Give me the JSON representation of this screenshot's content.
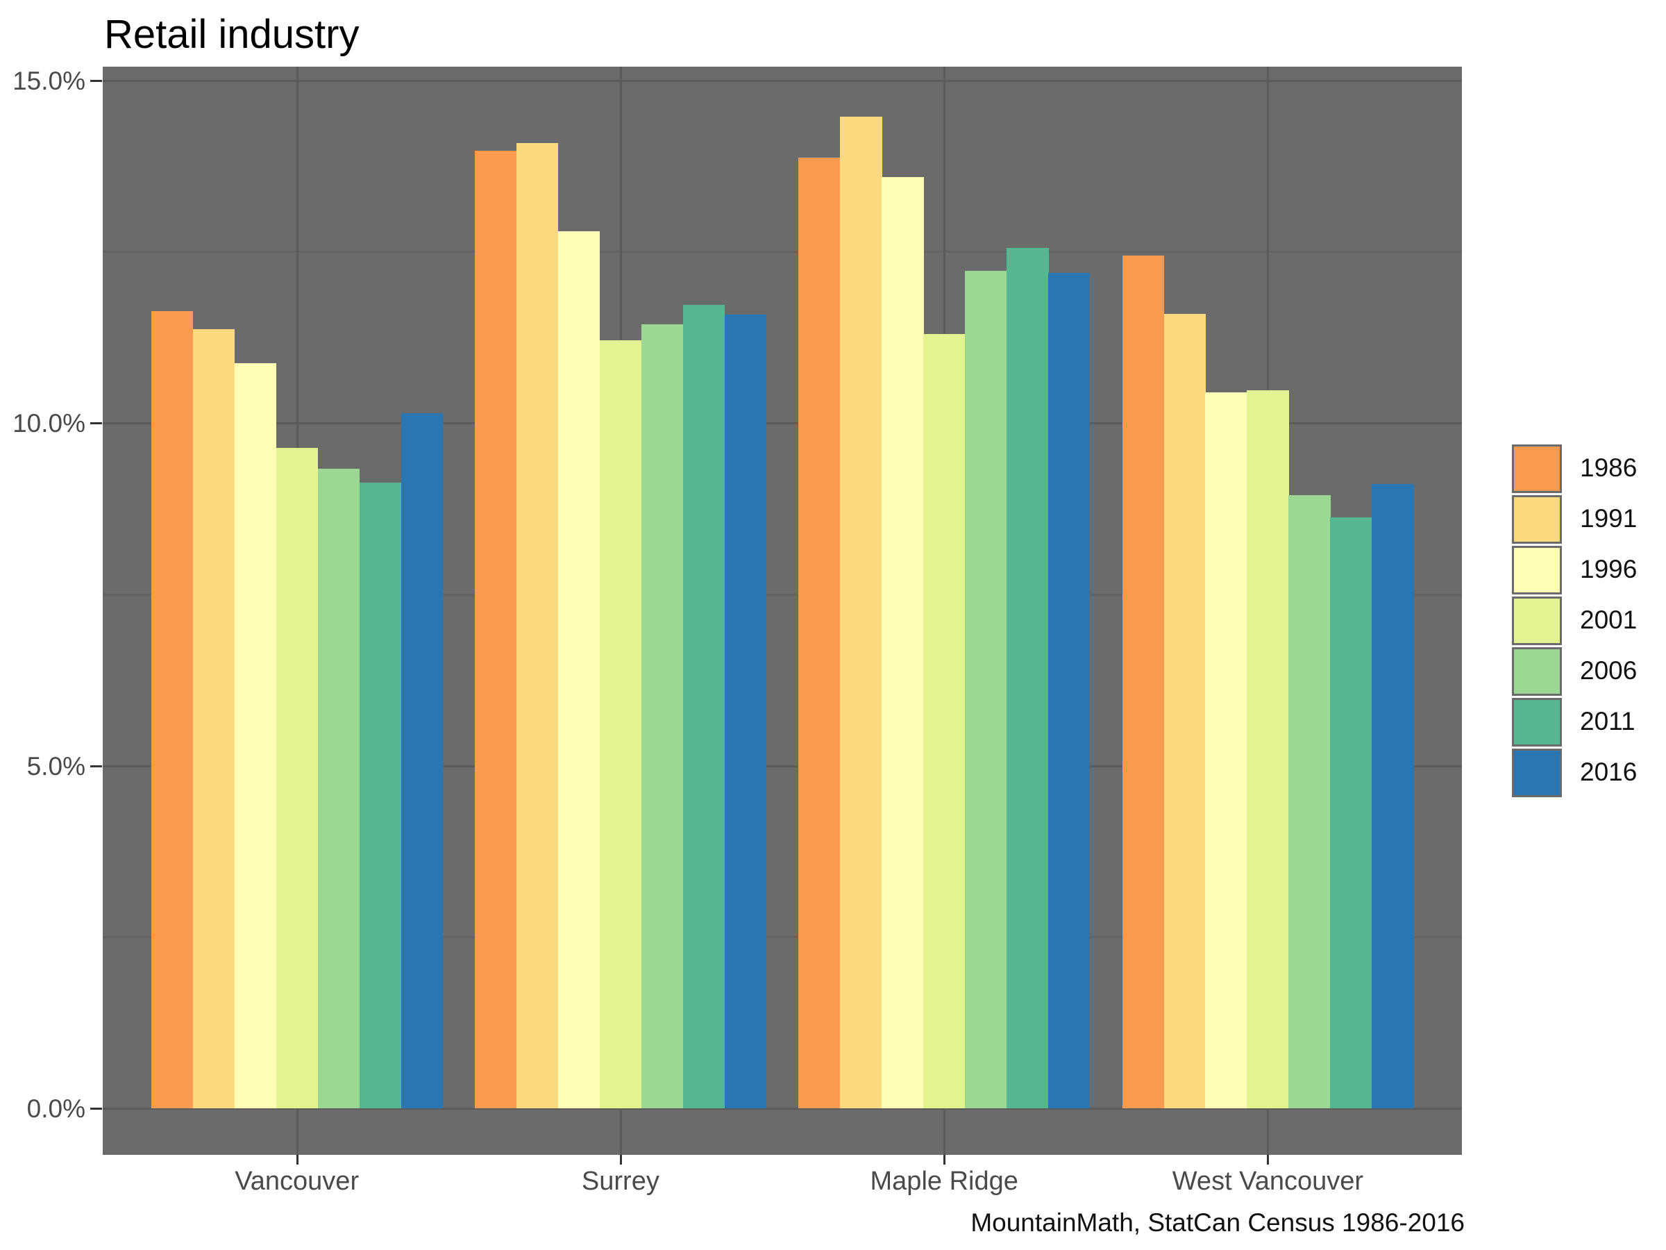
{
  "title": "Retail industry",
  "caption": "MountainMath, StatCan Census 1986-2016",
  "colors": {
    "panel_background": "#6B6B6B",
    "grid_major": "#5B5B5B",
    "grid_minor": "#626262",
    "tick_mark": "#333333",
    "axis_text": "#4a4a4a",
    "title_text": "#000000",
    "caption_text": "#111111"
  },
  "y_axis": {
    "ticks": [
      {
        "label": "15.0%",
        "value": 15
      },
      {
        "label": "10.0%",
        "value": 10
      },
      {
        "label": "5.0%",
        "value": 5
      },
      {
        "label": "0.0%",
        "value": 0
      }
    ],
    "minor_values": [
      2.5,
      7.5,
      12.5
    ]
  },
  "chart_data": {
    "type": "bar",
    "title": "Retail industry",
    "xlabel": "",
    "ylabel": "",
    "ylim": [
      0,
      15.2
    ],
    "grid": "on",
    "legend_position": "right",
    "categories": [
      "Vancouver",
      "Surrey",
      "Maple Ridge",
      "West Vancouver"
    ],
    "series": [
      {
        "name": "1986",
        "color": "#F89B51",
        "values": [
          11.63,
          13.97,
          13.87,
          12.44
        ]
      },
      {
        "name": "1991",
        "color": "#FBD97F",
        "values": [
          11.37,
          14.08,
          14.47,
          11.59
        ]
      },
      {
        "name": "1996",
        "color": "#FEFEB4",
        "values": [
          10.87,
          12.8,
          13.59,
          10.45
        ]
      },
      {
        "name": "2001",
        "color": "#E2F48F",
        "values": [
          9.64,
          11.21,
          11.3,
          10.48
        ]
      },
      {
        "name": "2006",
        "color": "#9BD893",
        "values": [
          9.33,
          11.44,
          12.22,
          8.95
        ]
      },
      {
        "name": "2011",
        "color": "#54B78F",
        "values": [
          9.13,
          11.72,
          12.55,
          8.62
        ]
      },
      {
        "name": "2016",
        "color": "#2B75B0",
        "values": [
          10.14,
          11.58,
          12.19,
          9.11
        ]
      }
    ]
  }
}
